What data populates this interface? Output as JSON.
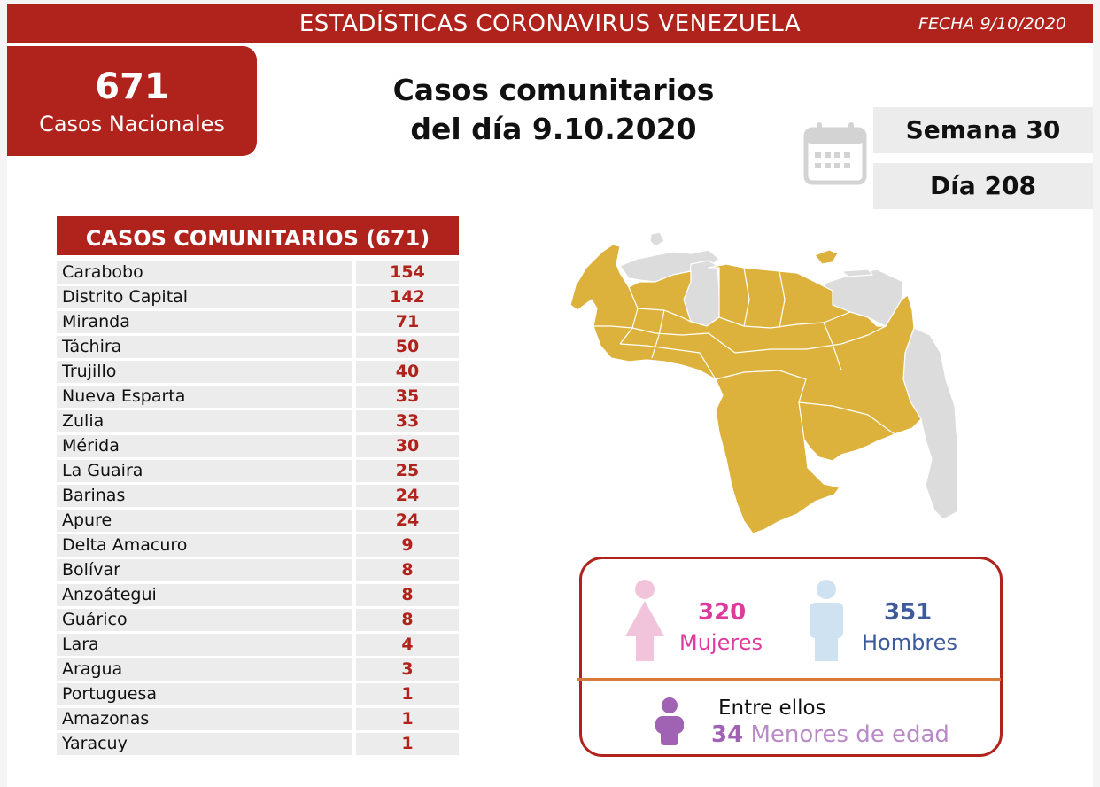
{
  "header": {
    "title": "ESTADÍSTICAS CORONAVIRUS VENEZUELA",
    "date": "FECHA 9/10/2020"
  },
  "national": {
    "count": "671",
    "label": "Casos Nacionales"
  },
  "main_title": {
    "line1": "Casos comunitarios",
    "line2": "del día 9.10.2020"
  },
  "calendar": {
    "icon": "calendar-icon",
    "week": "Semana 30",
    "day": "Día 208"
  },
  "table": {
    "title": "CASOS COMUNITARIOS (671)",
    "rows": [
      {
        "state": "Carabobo",
        "cases": "154"
      },
      {
        "state": "Distrito Capital",
        "cases": "142"
      },
      {
        "state": "Miranda",
        "cases": "71"
      },
      {
        "state": "Táchira",
        "cases": "50"
      },
      {
        "state": "Trujillo",
        "cases": "40"
      },
      {
        "state": "Nueva Esparta",
        "cases": "35"
      },
      {
        "state": "Zulia",
        "cases": "33"
      },
      {
        "state": "Mérida",
        "cases": "30"
      },
      {
        "state": "La Guaira",
        "cases": "25"
      },
      {
        "state": "Barinas",
        "cases": "24"
      },
      {
        "state": "Apure",
        "cases": "24"
      },
      {
        "state": "Delta Amacuro",
        "cases": "9"
      },
      {
        "state": "Bolívar",
        "cases": "8"
      },
      {
        "state": "Anzoátegui",
        "cases": "8"
      },
      {
        "state": "Guárico",
        "cases": "8"
      },
      {
        "state": "Lara",
        "cases": "4"
      },
      {
        "state": "Aragua",
        "cases": "3"
      },
      {
        "state": "Portuguesa",
        "cases": "1"
      },
      {
        "state": "Amazonas",
        "cases": "1"
      },
      {
        "state": "Yaracuy",
        "cases": "1"
      }
    ]
  },
  "map": {
    "icon": "venezuela-map",
    "affected_color": "#ddb23c",
    "unaffected_color": "#dcdcdc"
  },
  "gender": {
    "women_count": "320",
    "women_label": "Mujeres",
    "women_icon": "woman-icon",
    "men_count": "351",
    "men_label": "Hombres",
    "men_icon": "man-icon",
    "minors_intro": "Entre ellos",
    "minors_count": "34",
    "minors_label": "Menores de edad",
    "child_icon": "child-icon"
  },
  "colors": {
    "brand_red": "#b0231c",
    "women": "#e0399e",
    "men": "#3d5a9c",
    "minors": "#a063b4"
  }
}
